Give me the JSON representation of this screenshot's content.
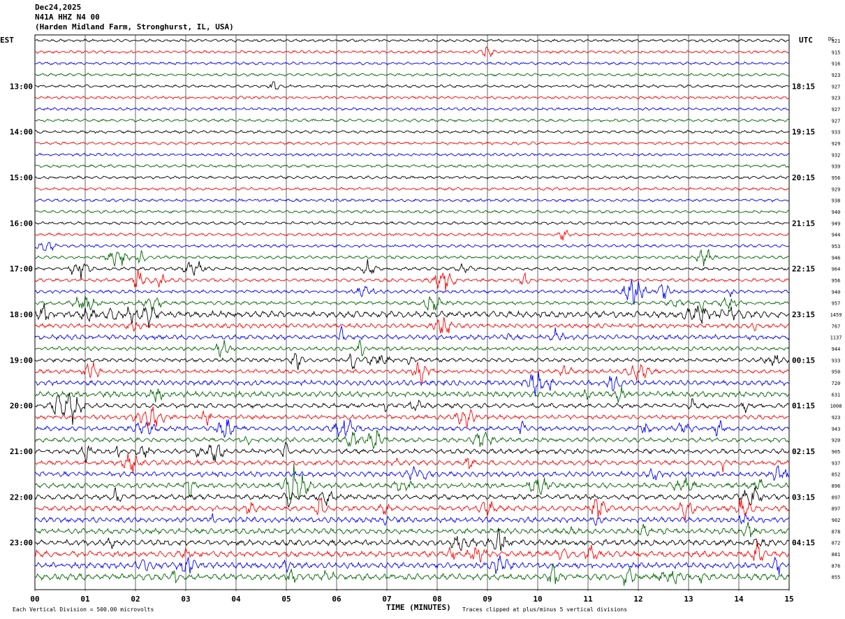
{
  "header": {
    "date": "Dec24,2025",
    "channel": "N41A HHZ N4 00",
    "location": "(Harden Midland Farm, Stronghurst, IL, USA)"
  },
  "left_axis_title": "EST",
  "right_axis_title": "UTC",
  "dc_title": "DC",
  "footer": {
    "scale_note": "Each Vertical Division =  500.00 microvolts",
    "xlabel": "TIME (MINUTES)",
    "clip_note": "Traces clipped at plus/minus 5 vertical divisions"
  },
  "colors": {
    "trace_cycle": [
      "#000000",
      "#ff0000",
      "#0000ff",
      "#006400"
    ],
    "grid": "#000000"
  },
  "chart_data": {
    "type": "line",
    "x_ticks": [
      "00",
      "01",
      "02",
      "03",
      "04",
      "05",
      "06",
      "07",
      "08",
      "09",
      "10",
      "11",
      "12",
      "13",
      "14",
      "15"
    ],
    "xlim": [
      0,
      15
    ],
    "est_labels": [
      "13:00",
      "14:00",
      "15:00",
      "16:00",
      "17:00",
      "18:00",
      "19:00",
      "20:00",
      "21:00",
      "22:00",
      "23:00"
    ],
    "utc_labels": [
      "18:15",
      "19:15",
      "20:15",
      "21:15",
      "22:15",
      "23:15",
      "00:15",
      "01:15",
      "02:15",
      "03:15",
      "04:15"
    ],
    "dc_values": [
      "921",
      "915",
      "916",
      "923",
      "927",
      "923",
      "927",
      "927",
      "933",
      "929",
      "932",
      "939",
      "956",
      "929",
      "938",
      "940",
      "949",
      "944",
      "953",
      "946",
      "964",
      "956",
      "940",
      "957",
      "1459",
      "767",
      "1137",
      "944",
      "933",
      "950",
      "720",
      "631",
      "1008",
      "923",
      "943",
      "920",
      "905",
      "937",
      "852",
      "896",
      "897",
      "897",
      "902",
      "878",
      "872",
      "881",
      "876",
      "855"
    ],
    "trace_count": 48,
    "traces_per_hour": 4
  }
}
